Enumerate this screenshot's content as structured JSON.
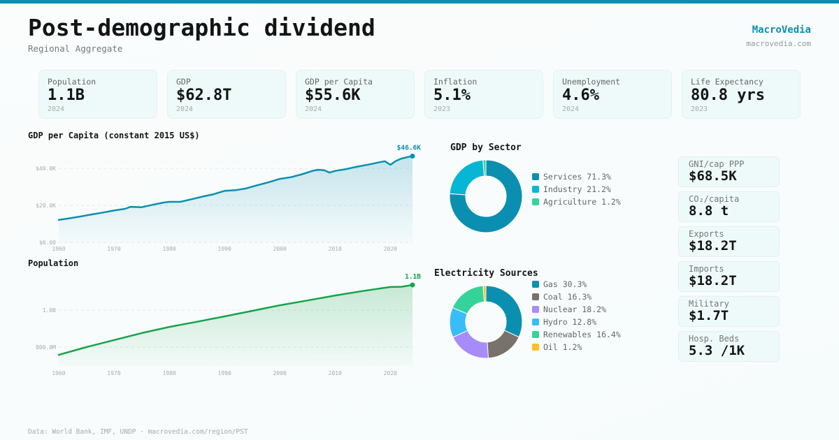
{
  "header": {
    "title": "Post-demographic dividend",
    "subtitle": "Regional Aggregate",
    "brand": "MacroVedia",
    "brand_url": "macrovedia.com"
  },
  "kpis": [
    {
      "label": "Population",
      "value": "1.1B",
      "year": "2024"
    },
    {
      "label": "GDP",
      "value": "$62.8T",
      "year": "2024"
    },
    {
      "label": "GDP per Capita",
      "value": "$55.6K",
      "year": "2024"
    },
    {
      "label": "Inflation",
      "value": "5.1%",
      "year": "2023"
    },
    {
      "label": "Unemployment",
      "value": "4.6%",
      "year": "2024"
    },
    {
      "label": "Life Expectancy",
      "value": "80.8 yrs",
      "year": "2023"
    }
  ],
  "side_stats": [
    {
      "label": "GNI/cap PPP",
      "value": "$68.5K"
    },
    {
      "label": "CO₂/capita",
      "value": "8.8 t"
    },
    {
      "label": "Exports",
      "value": "$18.2T"
    },
    {
      "label": "Imports",
      "value": "$18.2T"
    },
    {
      "label": "Military",
      "value": "$1.7T"
    },
    {
      "label": "Hosp. Beds",
      "value": "5.3 /1K"
    }
  ],
  "footer": "Data: World Bank, IMF, UNDP · macrovedia.com/region/PST",
  "colors": {
    "accent": "#0a8fb1",
    "gdp_line": "#0a8fb1",
    "pop_line": "#16a34a"
  },
  "chart_data": [
    {
      "type": "area",
      "id": "gdp_per_capita",
      "title": "GDP per Capita (constant 2015 US$)",
      "xlabel": "",
      "ylabel": "",
      "x_ticks": [
        "1960",
        "1970",
        "1980",
        "1990",
        "2000",
        "2010",
        "2020"
      ],
      "y_ticks": [
        {
          "value": 0,
          "label": "$0.00"
        },
        {
          "value": 20000,
          "label": "$20.0K"
        },
        {
          "value": 40000,
          "label": "$40.0K"
        }
      ],
      "xlim": [
        1960,
        2024
      ],
      "ylim": [
        0,
        46600
      ],
      "end_label": "$46.6K",
      "grid": true,
      "x": [
        1960,
        1962,
        1964,
        1966,
        1968,
        1970,
        1972,
        1973,
        1975,
        1977,
        1979,
        1980,
        1982,
        1984,
        1986,
        1988,
        1990,
        1992,
        1994,
        1996,
        1998,
        2000,
        2002,
        2004,
        2006,
        2007,
        2008,
        2009,
        2010,
        2012,
        2014,
        2016,
        2018,
        2019,
        2020,
        2021,
        2022,
        2023,
        2024
      ],
      "values": [
        12100,
        13000,
        14000,
        15100,
        16100,
        17200,
        18100,
        19200,
        19000,
        20300,
        21500,
        21900,
        21900,
        23300,
        24700,
        26000,
        27800,
        28200,
        29200,
        30900,
        32500,
        34300,
        35200,
        36800,
        38700,
        39200,
        39000,
        37700,
        38600,
        39600,
        40900,
        42000,
        43300,
        43800,
        41900,
        44000,
        45300,
        46000,
        46600
      ]
    },
    {
      "type": "area",
      "id": "population",
      "title": "Population",
      "xlabel": "",
      "ylabel": "",
      "x_ticks": [
        "1960",
        "1970",
        "1980",
        "1990",
        "2000",
        "2010",
        "2020"
      ],
      "y_ticks": [
        {
          "value": 800000000,
          "label": "800.0M"
        },
        {
          "value": 1000000000,
          "label": "1.0B"
        }
      ],
      "xlim": [
        1960,
        2024
      ],
      "ylim": [
        702000000,
        1136000000
      ],
      "end_label": "1.1B",
      "grid": true,
      "x": [
        1960,
        1965,
        1970,
        1975,
        1980,
        1985,
        1990,
        1995,
        2000,
        2005,
        2010,
        2015,
        2020,
        2022,
        2024
      ],
      "values": [
        758000000,
        800000000,
        838000000,
        876000000,
        909000000,
        937000000,
        966000000,
        996000000,
        1026000000,
        1052000000,
        1079000000,
        1103000000,
        1125000000,
        1126000000,
        1136000000
      ]
    },
    {
      "type": "pie",
      "id": "gdp_by_sector",
      "title": "GDP by Sector",
      "donut": true,
      "categories": [
        "Services",
        "Industry",
        "Agriculture"
      ],
      "values": [
        71.3,
        21.2,
        1.2
      ],
      "labels": [
        "Services 71.3%",
        "Industry 21.2%",
        "Agriculture 1.2%"
      ],
      "colors": [
        "#0a8fb1",
        "#06b6d4",
        "#34d399"
      ],
      "legend": "right"
    },
    {
      "type": "pie",
      "id": "electricity_sources",
      "title": "Electricity Sources",
      "donut": true,
      "categories": [
        "Gas",
        "Coal",
        "Nuclear",
        "Hydro",
        "Renewables",
        "Oil"
      ],
      "values": [
        30.3,
        16.3,
        18.2,
        12.8,
        16.4,
        1.2
      ],
      "labels": [
        "Gas 30.3%",
        "Coal 16.3%",
        "Nuclear 18.2%",
        "Hydro 12.8%",
        "Renewables 16.4%",
        "Oil 1.2%"
      ],
      "colors": [
        "#0a8fb1",
        "#78716c",
        "#a78bfa",
        "#38bdf8",
        "#34d399",
        "#fbbf24"
      ],
      "legend": "right"
    }
  ]
}
